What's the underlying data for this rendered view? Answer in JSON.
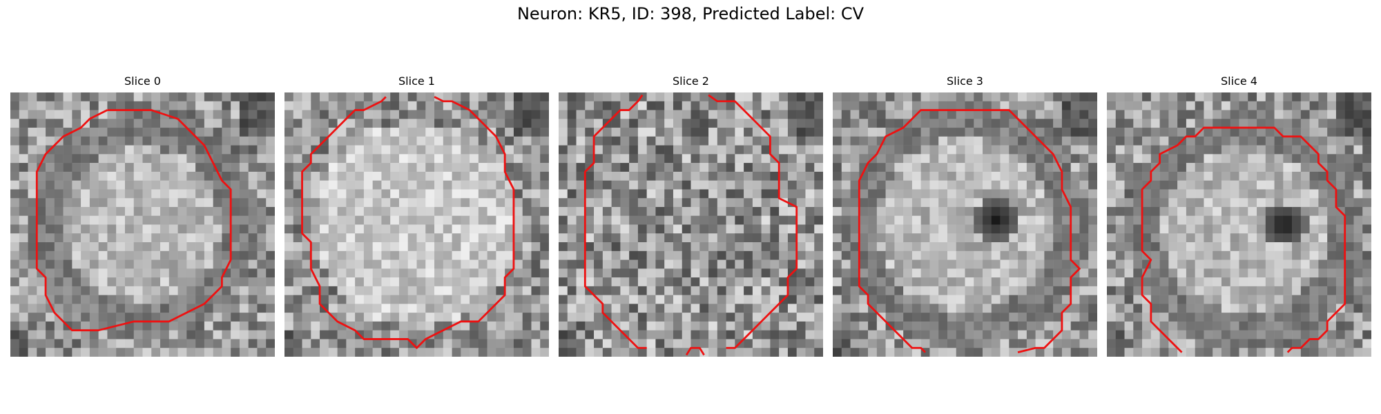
{
  "figure": {
    "title": "Neuron: KR5, ID: 398, Predicted Label: CV"
  },
  "panels": [
    {
      "title": "Slice 0",
      "feature": "ring",
      "center": [
        0.5,
        0.5
      ],
      "radius": 0.36,
      "dark_spot": null
    },
    {
      "title": "Slice 1",
      "feature": "bright",
      "center": [
        0.5,
        0.5
      ],
      "radius": 0.44,
      "dark_spot": null
    },
    {
      "title": "Slice 2",
      "feature": "noise",
      "center": [
        0.5,
        0.5
      ],
      "radius": 0.45,
      "dark_spot": null
    },
    {
      "title": "Slice 3",
      "feature": "spot",
      "center": [
        0.5,
        0.5
      ],
      "radius": 0.4,
      "dark_spot": [
        0.62,
        0.48
      ]
    },
    {
      "title": "Slice 4",
      "feature": "ring-spot",
      "center": [
        0.52,
        0.52
      ],
      "radius": 0.38,
      "dark_spot": [
        0.67,
        0.5
      ]
    }
  ],
  "contour_color": "#ee1111"
}
